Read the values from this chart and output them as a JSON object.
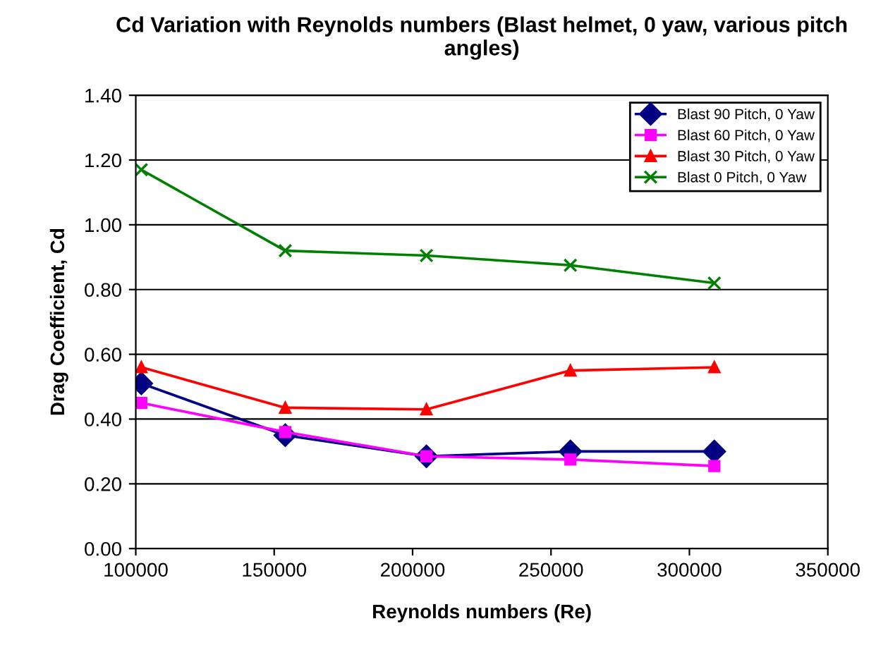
{
  "chart_data": {
    "type": "line",
    "title": "Cd Variation with Reynolds numbers (Blast helmet, 0 yaw, various pitch angles)",
    "xlabel": "Reynolds numbers (Re)",
    "ylabel": "Drag Coefficient, Cd",
    "x": [
      102000,
      154000,
      205000,
      257000,
      309000
    ],
    "series": [
      {
        "name": "Blast 90 Pitch, 0 Yaw",
        "color": "#000080",
        "marker": "diamond",
        "values": [
          0.51,
          0.35,
          0.285,
          0.3,
          0.3
        ]
      },
      {
        "name": "Blast 60 Pitch, 0 Yaw",
        "color": "#ff00ff",
        "marker": "square",
        "values": [
          0.45,
          0.36,
          0.285,
          0.275,
          0.255
        ]
      },
      {
        "name": "Blast 30 Pitch, 0 Yaw",
        "color": "#ff0000",
        "marker": "triangle",
        "values": [
          0.56,
          0.435,
          0.43,
          0.55,
          0.56
        ]
      },
      {
        "name": "Blast 0 Pitch, 0 Yaw",
        "color": "#008000",
        "marker": "cross",
        "values": [
          1.17,
          0.92,
          0.905,
          0.875,
          0.82
        ]
      }
    ],
    "xlim": [
      100000,
      350000
    ],
    "xticks": [
      100000,
      150000,
      200000,
      250000,
      300000,
      350000
    ],
    "ylim": [
      0,
      1.4
    ],
    "yticks": [
      {
        "value": 0,
        "label": "0.00"
      },
      {
        "value": 0.2,
        "label": "0.20"
      },
      {
        "value": 0.4,
        "label": "0.40"
      },
      {
        "value": 0.6,
        "label": "0.60"
      },
      {
        "value": 0.8,
        "label": "0.80"
      },
      {
        "value": 1.0,
        "label": "1.00"
      },
      {
        "value": 1.2,
        "label": "1.20"
      },
      {
        "value": 1.4,
        "label": "1.40"
      }
    ],
    "grid": "y",
    "legend": "top right",
    "line_style": "solid"
  }
}
